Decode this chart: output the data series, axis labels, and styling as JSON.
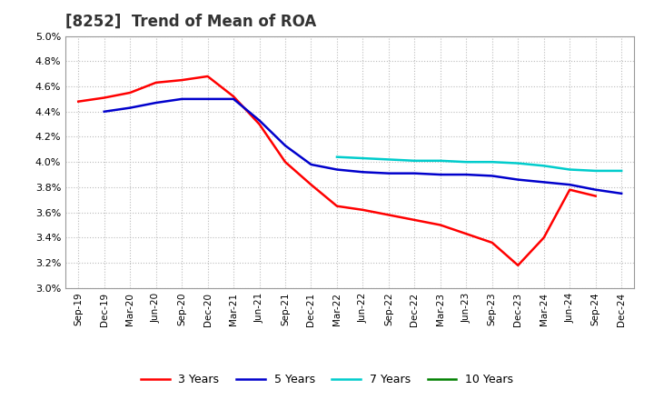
{
  "title": "[8252]  Trend of Mean of ROA",
  "background_color": "#ffffff",
  "plot_background": "#ffffff",
  "grid_color": "#aaaaaa",
  "ylim": [
    0.03,
    0.05
  ],
  "x_labels": [
    "Sep-19",
    "Dec-19",
    "Mar-20",
    "Jun-20",
    "Sep-20",
    "Dec-20",
    "Mar-21",
    "Jun-21",
    "Sep-21",
    "Dec-21",
    "Mar-22",
    "Jun-22",
    "Sep-22",
    "Dec-22",
    "Mar-23",
    "Jun-23",
    "Sep-23",
    "Dec-23",
    "Mar-24",
    "Jun-24",
    "Sep-24",
    "Dec-24"
  ],
  "series": {
    "3 Years": {
      "color": "#ff0000",
      "linewidth": 1.8,
      "data_x": [
        0,
        1,
        2,
        3,
        4,
        5,
        6,
        7,
        8,
        9,
        10,
        11,
        12,
        13,
        14,
        15,
        16,
        17,
        18,
        19,
        20
      ],
      "data_y": [
        0.0448,
        0.0451,
        0.0455,
        0.0463,
        0.0465,
        0.0468,
        0.0452,
        0.043,
        0.04,
        0.0382,
        0.0365,
        0.0362,
        0.0358,
        0.0354,
        0.035,
        0.0343,
        0.0336,
        0.0318,
        0.034,
        0.0378,
        0.0373
      ]
    },
    "5 Years": {
      "color": "#0000cc",
      "linewidth": 1.8,
      "data_x": [
        1,
        2,
        3,
        4,
        5,
        6,
        7,
        8,
        9,
        10,
        11,
        12,
        13,
        14,
        15,
        16,
        17,
        18,
        19,
        20,
        21
      ],
      "data_y": [
        0.044,
        0.0443,
        0.0447,
        0.045,
        0.045,
        0.045,
        0.0433,
        0.0413,
        0.0398,
        0.0394,
        0.0392,
        0.0391,
        0.0391,
        0.039,
        0.039,
        0.0389,
        0.0386,
        0.0384,
        0.0382,
        0.0378,
        0.0375
      ]
    },
    "7 Years": {
      "color": "#00cccc",
      "linewidth": 1.8,
      "data_x": [
        10,
        11,
        12,
        13,
        14,
        15,
        16,
        17,
        18,
        19,
        20,
        21
      ],
      "data_y": [
        0.0404,
        0.0403,
        0.0402,
        0.0401,
        0.0401,
        0.04,
        0.04,
        0.0399,
        0.0397,
        0.0394,
        0.0393,
        0.0393
      ]
    },
    "10 Years": {
      "color": "#008000",
      "linewidth": 1.8,
      "data_x": [],
      "data_y": []
    }
  }
}
